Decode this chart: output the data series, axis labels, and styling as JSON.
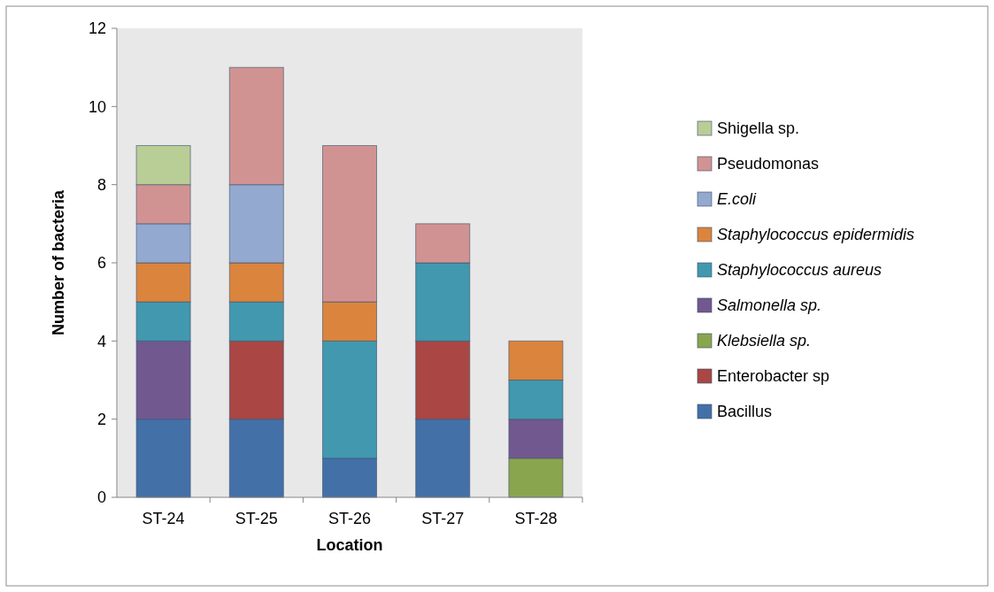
{
  "chart_data": {
    "type": "bar",
    "stacked": true,
    "xlabel": "Location",
    "ylabel": "Number of bacteria",
    "categories": [
      "ST-24",
      "ST-25",
      "ST-26",
      "ST-27",
      "ST-28"
    ],
    "ylim": [
      0,
      12
    ],
    "yticks": [
      0,
      2,
      4,
      6,
      8,
      10,
      12
    ],
    "grid": false,
    "legend": "right",
    "series": [
      {
        "name": "Bacillus",
        "color": "#4470a8",
        "values": [
          2,
          2,
          1,
          2,
          0
        ]
      },
      {
        "name": "Enterobacter sp",
        "color": "#aa4643",
        "values": [
          0,
          2,
          0,
          2,
          0
        ]
      },
      {
        "name": "Klebsiella sp.",
        "color": "#89a54e",
        "values": [
          0,
          0,
          0,
          0,
          1
        ]
      },
      {
        "name": "Salmonella sp.",
        "color": "#71588f",
        "values": [
          2,
          0,
          0,
          0,
          1
        ]
      },
      {
        "name": "Staphylococcus aureus",
        "color": "#4198af",
        "values": [
          1,
          1,
          3,
          2,
          1
        ]
      },
      {
        "name": "Staphylococcus epidermidis",
        "color": "#db843d",
        "values": [
          1,
          1,
          1,
          0,
          1
        ]
      },
      {
        "name": "E.coli",
        "color": "#93a9cf",
        "values": [
          1,
          2,
          0,
          0,
          0
        ]
      },
      {
        "name": "Pseudomonas",
        "color": "#d19392",
        "values": [
          1,
          3,
          4,
          1,
          0
        ]
      },
      {
        "name": "Shigella sp.",
        "color": "#b9cd96",
        "values": [
          1,
          0,
          0,
          0,
          0
        ]
      }
    ]
  }
}
